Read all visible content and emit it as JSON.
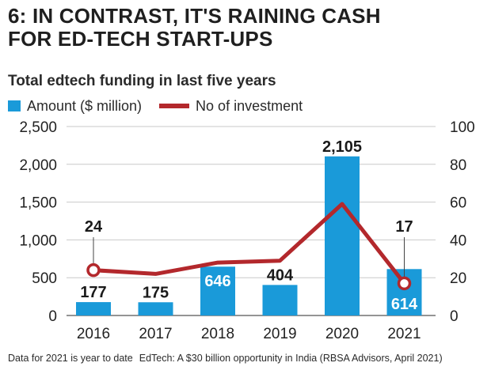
{
  "title_line1": "6: IN CONTRAST, IT'S RAINING CASH",
  "title_line2": "FOR ED-TECH START-UPS",
  "subtitle": "Total edtech funding in last five years",
  "legend": {
    "bar": "Amount ($ million)",
    "line": "No of investment"
  },
  "colors": {
    "bar": "#1a9ad9",
    "line": "#b3282c",
    "grid": "#c9c9c9"
  },
  "footnote_left": "Data for 2021 is year to date",
  "footnote_right": "EdTech: A $30 billion opportunity in India (RBSA Advisors, April 2021)",
  "chart_data": {
    "type": "bar",
    "categories": [
      "2016",
      "2017",
      "2018",
      "2019",
      "2020",
      "2021"
    ],
    "series": [
      {
        "name": "Amount ($ million)",
        "type": "bar",
        "axis": "left",
        "values": [
          177,
          175,
          646,
          404,
          2105,
          614
        ],
        "labels": [
          "177",
          "175",
          "646",
          "404",
          "2,105",
          "614"
        ]
      },
      {
        "name": "No of investment",
        "type": "line",
        "axis": "right",
        "values": [
          24,
          22,
          28,
          29,
          59,
          17
        ],
        "labels": {
          "0": "24",
          "5": "17"
        }
      }
    ],
    "left_axis": {
      "ylim": [
        0,
        2500
      ],
      "ticks": [
        "0",
        "500",
        "1,000",
        "1,500",
        "2,000",
        "2,500"
      ]
    },
    "right_axis": {
      "ylim": [
        0,
        100
      ],
      "ticks": [
        "0",
        "20",
        "40",
        "60",
        "80",
        "100"
      ]
    },
    "grid": true
  }
}
